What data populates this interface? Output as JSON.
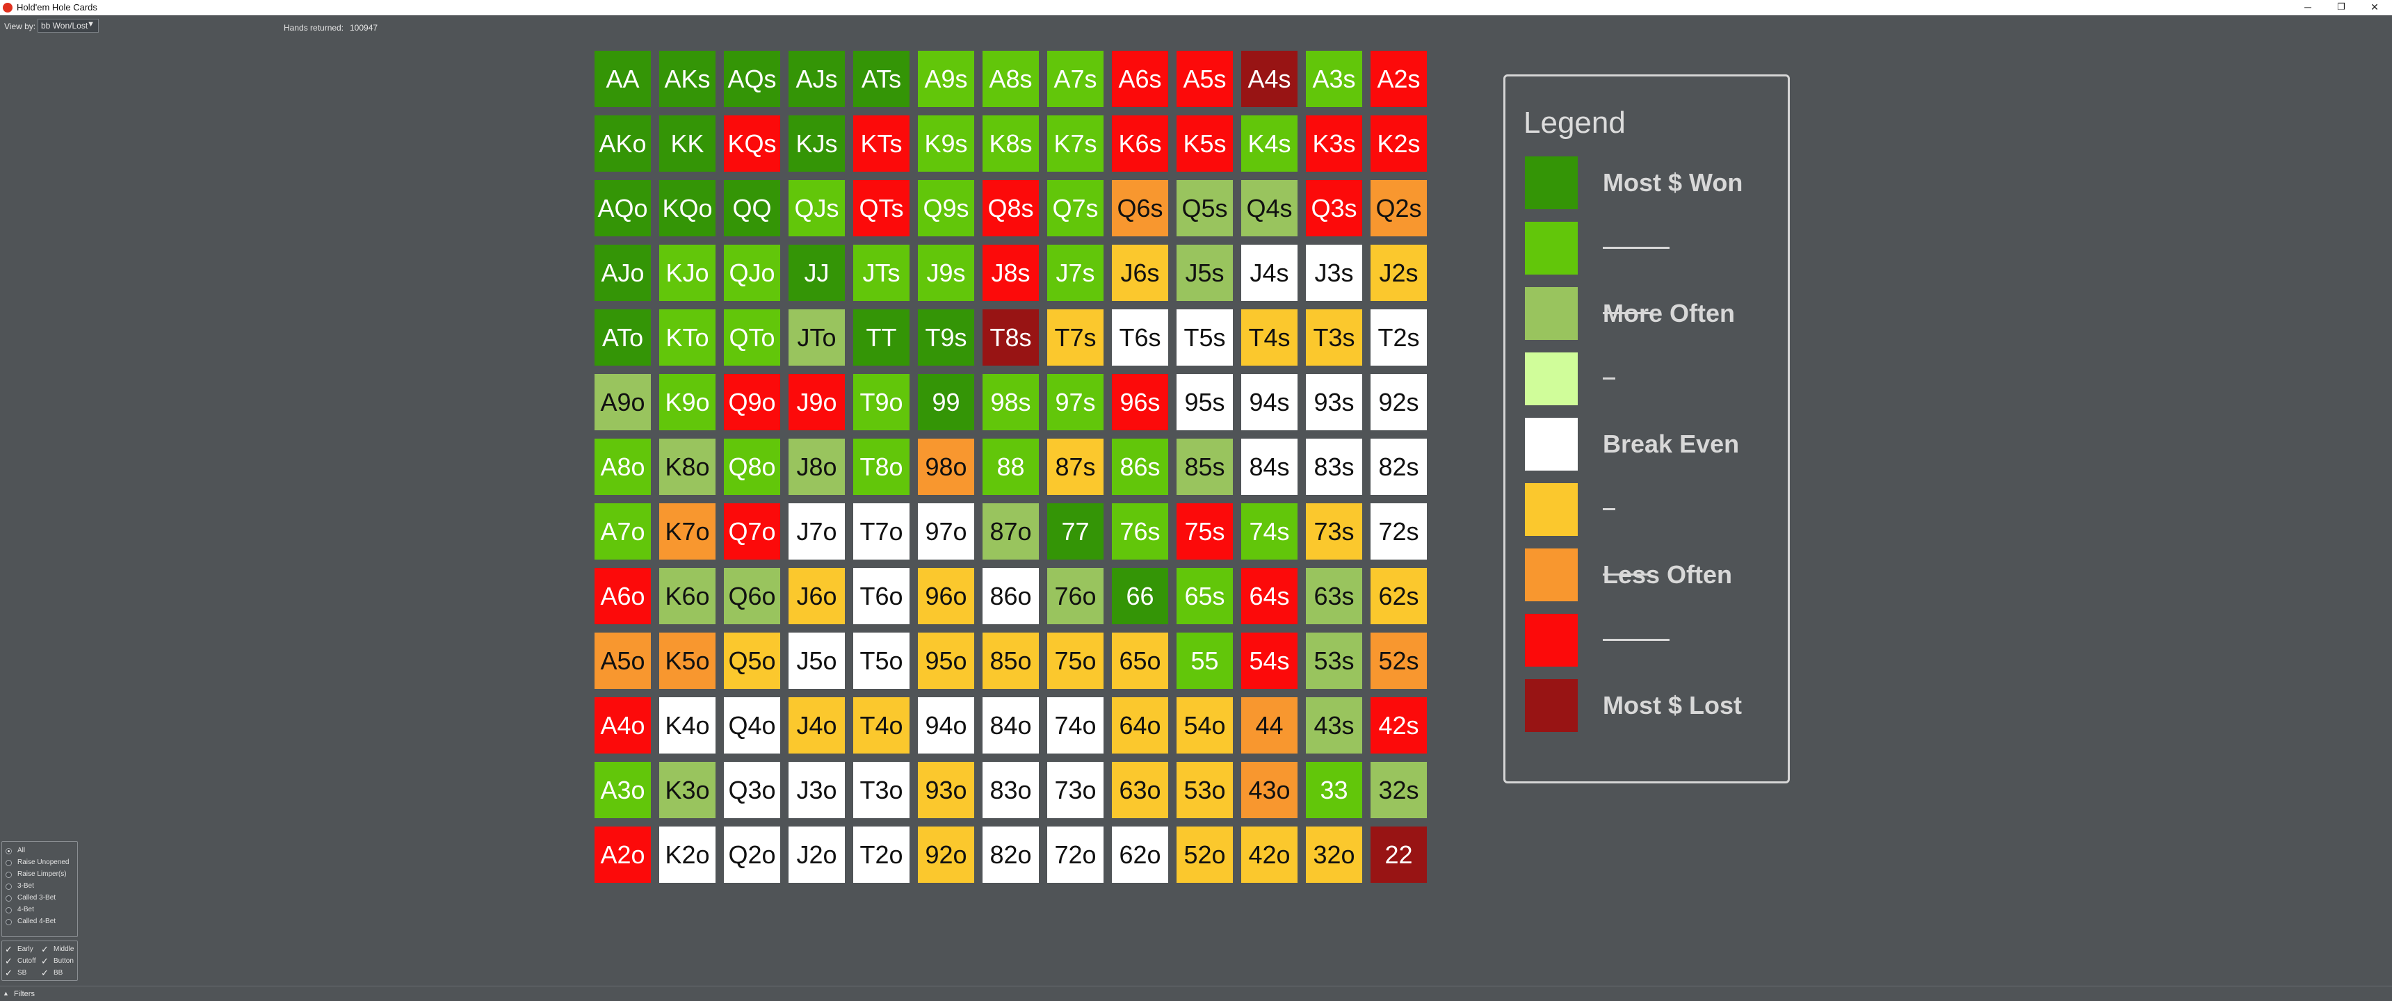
{
  "window": {
    "title": "Hold'em Hole Cards",
    "minimize": "─",
    "maximize": "❐",
    "close": "✕"
  },
  "toolbar": {
    "view_by_label": "View by:",
    "view_by_value": "bb Won/Lost",
    "view_by_arrow": "▼",
    "hands_label": "Hands returned:",
    "hands_count": "100947"
  },
  "grid": {
    "rows": [
      [
        "AA",
        "AKs",
        "AQs",
        "AJs",
        "ATs",
        "A9s",
        "A8s",
        "A7s",
        "A6s",
        "A5s",
        "A4s",
        "A3s",
        "A2s"
      ],
      [
        "AKo",
        "KK",
        "KQs",
        "KJs",
        "KTs",
        "K9s",
        "K8s",
        "K7s",
        "K6s",
        "K5s",
        "K4s",
        "K3s",
        "K2s"
      ],
      [
        "AQo",
        "KQo",
        "QQ",
        "QJs",
        "QTs",
        "Q9s",
        "Q8s",
        "Q7s",
        "Q6s",
        "Q5s",
        "Q4s",
        "Q3s",
        "Q2s"
      ],
      [
        "AJo",
        "KJo",
        "QJo",
        "JJ",
        "JTs",
        "J9s",
        "J8s",
        "J7s",
        "J6s",
        "J5s",
        "J4s",
        "J3s",
        "J2s"
      ],
      [
        "ATo",
        "KTo",
        "QTo",
        "JTo",
        "TT",
        "T9s",
        "T8s",
        "T7s",
        "T6s",
        "T5s",
        "T4s",
        "T3s",
        "T2s"
      ],
      [
        "A9o",
        "K9o",
        "Q9o",
        "J9o",
        "T9o",
        "99",
        "98s",
        "97s",
        "96s",
        "95s",
        "94s",
        "93s",
        "92s"
      ],
      [
        "A8o",
        "K8o",
        "Q8o",
        "J8o",
        "T8o",
        "98o",
        "88",
        "87s",
        "86s",
        "85s",
        "84s",
        "83s",
        "82s"
      ],
      [
        "A7o",
        "K7o",
        "Q7o",
        "J7o",
        "T7o",
        "97o",
        "87o",
        "77",
        "76s",
        "75s",
        "74s",
        "73s",
        "72s"
      ],
      [
        "A6o",
        "K6o",
        "Q6o",
        "J6o",
        "T6o",
        "96o",
        "86o",
        "76o",
        "66",
        "65s",
        "64s",
        "63s",
        "62s"
      ],
      [
        "A5o",
        "K5o",
        "Q5o",
        "J5o",
        "T5o",
        "95o",
        "85o",
        "75o",
        "65o",
        "55",
        "54s",
        "53s",
        "52s"
      ],
      [
        "A4o",
        "K4o",
        "Q4o",
        "J4o",
        "T4o",
        "94o",
        "84o",
        "74o",
        "64o",
        "54o",
        "44",
        "43s",
        "42s"
      ],
      [
        "A3o",
        "K3o",
        "Q3o",
        "J3o",
        "T3o",
        "93o",
        "83o",
        "73o",
        "63o",
        "53o",
        "43o",
        "33",
        "32s"
      ],
      [
        "A2o",
        "K2o",
        "Q2o",
        "J2o",
        "T2o",
        "92o",
        "82o",
        "72o",
        "62o",
        "52o",
        "42o",
        "32o",
        "22"
      ]
    ],
    "color_levels": [
      [
        1,
        1,
        1,
        1,
        1,
        2,
        2,
        2,
        8,
        8,
        9,
        2,
        8
      ],
      [
        1,
        1,
        8,
        1,
        8,
        2,
        2,
        2,
        8,
        8,
        2,
        8,
        8
      ],
      [
        1,
        1,
        1,
        2,
        8,
        2,
        8,
        2,
        7,
        3,
        3,
        8,
        7
      ],
      [
        1,
        2,
        2,
        1,
        2,
        2,
        8,
        2,
        6,
        3,
        5,
        5,
        6
      ],
      [
        1,
        2,
        2,
        3,
        1,
        1,
        9,
        6,
        5,
        5,
        6,
        6,
        5
      ],
      [
        3,
        2,
        8,
        8,
        2,
        1,
        2,
        2,
        8,
        5,
        5,
        5,
        5
      ],
      [
        2,
        3,
        2,
        3,
        2,
        7,
        2,
        6,
        2,
        3,
        5,
        5,
        5
      ],
      [
        2,
        7,
        8,
        5,
        5,
        5,
        3,
        1,
        2,
        8,
        2,
        6,
        5
      ],
      [
        8,
        3,
        3,
        6,
        5,
        6,
        5,
        3,
        1,
        2,
        8,
        3,
        6
      ],
      [
        7,
        7,
        6,
        5,
        5,
        6,
        6,
        6,
        6,
        2,
        8,
        3,
        7
      ],
      [
        8,
        5,
        5,
        6,
        6,
        5,
        5,
        5,
        6,
        6,
        7,
        3,
        8
      ],
      [
        2,
        3,
        5,
        5,
        5,
        6,
        5,
        5,
        6,
        6,
        7,
        2,
        3
      ],
      [
        8,
        5,
        5,
        5,
        5,
        6,
        5,
        5,
        5,
        6,
        6,
        6,
        9
      ]
    ]
  },
  "colors": {
    "1": "#349506",
    "2": "#62c60a",
    "3": "#99c45e",
    "4": "#d0fd9a",
    "5": "#ffffff",
    "6": "#fbc82d",
    "7": "#f8972f",
    "8": "#fc0a0a",
    "9": "#981414"
  },
  "legend": {
    "title": "Legend",
    "items": [
      {
        "label": "Most $ Won",
        "color": "#349506"
      },
      {
        "label": "",
        "color": "#62c60a"
      },
      {
        "label": "More Often",
        "color": "#99c45e"
      },
      {
        "label": "",
        "color": "#d0fd9a"
      },
      {
        "label": "Break Even",
        "color": "#ffffff"
      },
      {
        "label": "",
        "color": "#fbc82d"
      },
      {
        "label": "Less Often",
        "color": "#f8972f"
      },
      {
        "label": "",
        "color": "#fc0a0a"
      },
      {
        "label": "Most $ Lost",
        "color": "#981414"
      }
    ]
  },
  "filters": {
    "actions": [
      "All",
      "Raise Unopened",
      "Raise Limper(s)",
      "3-Bet",
      "Called 3-Bet",
      "4-Bet",
      "Called 4-Bet"
    ],
    "selected_action": "All",
    "positions": [
      "Early",
      "Middle",
      "Cutoff",
      "Button",
      "SB",
      "BB"
    ],
    "check_mark": "✓",
    "panel_label": "Filters",
    "panel_toggle": "▲"
  }
}
